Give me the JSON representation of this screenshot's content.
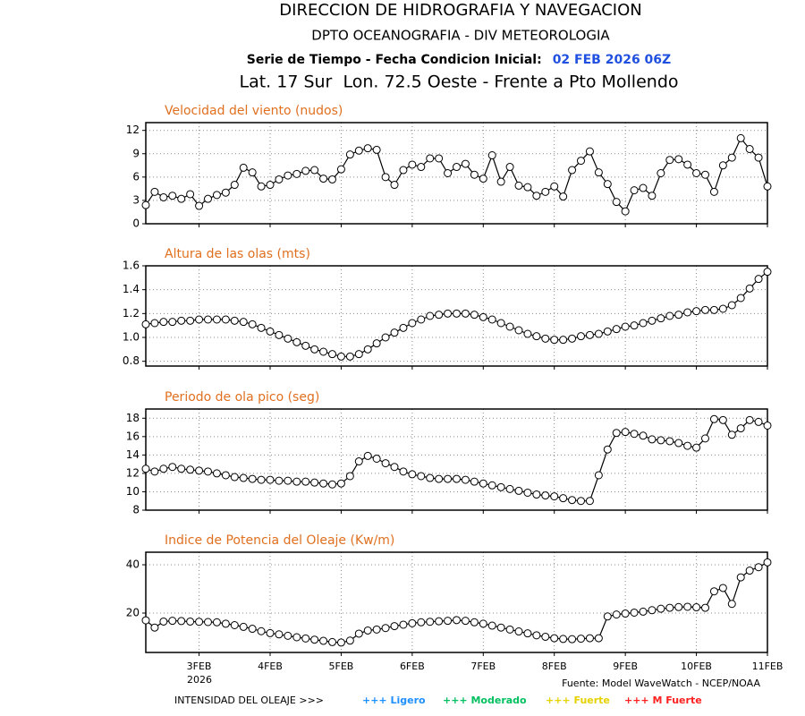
{
  "header": {
    "line1": "DIRECCION DE HIDROGRAFIA Y NAVEGACION",
    "line2": "DPTO OCEANOGRAFIA - DIV METEOROLOGIA",
    "line3": "Serie de Tiempo - Fecha Condicion Inicial:",
    "date": "02 FEB 2026 06Z",
    "location": "Lat. 17 Sur  Lon. 72.5 Oeste - Frente a Pto Mollendo"
  },
  "footer": {
    "year": "2026",
    "source": "Fuente: Model WaveWatch - NCEP/NOAA",
    "intensity_label": "INTENSIDAD DEL OLEAJE >>>",
    "intensity_items": [
      {
        "text": "+++ Ligero",
        "color": "#1e90ff"
      },
      {
        "text": "+++ Moderado",
        "color": "#00c060"
      },
      {
        "text": "+++ Fuerte",
        "color": "#e6d200"
      },
      {
        "text": "+++ M Fuerte",
        "color": "#ff2020"
      }
    ]
  },
  "chart_data": [
    {
      "type": "line",
      "title": "Velocidad del viento (nudos)",
      "color": "#000000",
      "grid": true,
      "x": [
        2.25,
        2.375,
        2.5,
        2.625,
        2.75,
        2.875,
        3,
        3.125,
        3.25,
        3.375,
        3.5,
        3.625,
        3.75,
        3.875,
        4,
        4.125,
        4.25,
        4.375,
        4.5,
        4.625,
        4.75,
        4.875,
        5,
        5.125,
        5.25,
        5.375,
        5.5,
        5.625,
        5.75,
        5.875,
        6,
        6.125,
        6.25,
        6.375,
        6.5,
        6.625,
        6.75,
        6.875,
        7,
        7.125,
        7.25,
        7.375,
        7.5,
        7.625,
        7.75,
        7.875,
        8,
        8.125,
        8.25,
        8.375,
        8.5,
        8.625,
        8.75,
        8.875,
        9,
        9.125,
        9.25,
        9.375,
        9.5,
        9.625,
        9.75,
        9.875,
        10,
        10.125,
        10.25,
        10.375,
        10.5,
        10.625,
        10.75,
        10.875,
        11
      ],
      "values": [
        2.4,
        4.1,
        3.4,
        3.6,
        3.2,
        3.8,
        2.3,
        3.2,
        3.7,
        4.0,
        5.0,
        7.2,
        6.6,
        4.8,
        5.0,
        5.7,
        6.2,
        6.4,
        6.8,
        6.9,
        5.8,
        5.7,
        7.0,
        8.9,
        9.4,
        9.7,
        9.5,
        6.0,
        5.0,
        6.9,
        7.6,
        7.3,
        8.4,
        8.4,
        6.5,
        7.3,
        7.7,
        6.3,
        5.8,
        8.8,
        5.4,
        7.3,
        4.9,
        4.7,
        3.6,
        4.1,
        4.8,
        3.5,
        6.9,
        8.1,
        9.3,
        6.6,
        5.1,
        2.8,
        1.6,
        4.3,
        4.6,
        3.6,
        6.5,
        8.2,
        8.3,
        7.6,
        6.5,
        6.3,
        4.1,
        7.5,
        8.5,
        11.0,
        9.6,
        8.5,
        4.8
      ],
      "xlim": [
        2.25,
        11
      ],
      "xticks": [
        3,
        4,
        5,
        6,
        7,
        8,
        9,
        10,
        11
      ],
      "ylim": [
        0,
        13
      ],
      "yticks": [
        0,
        3,
        6,
        9,
        12
      ]
    },
    {
      "type": "line",
      "title": "Altura de las olas (mts)",
      "color": "#000000",
      "grid": true,
      "x": [
        2.25,
        2.375,
        2.5,
        2.625,
        2.75,
        2.875,
        3,
        3.125,
        3.25,
        3.375,
        3.5,
        3.625,
        3.75,
        3.875,
        4,
        4.125,
        4.25,
        4.375,
        4.5,
        4.625,
        4.75,
        4.875,
        5,
        5.125,
        5.25,
        5.375,
        5.5,
        5.625,
        5.75,
        5.875,
        6,
        6.125,
        6.25,
        6.375,
        6.5,
        6.625,
        6.75,
        6.875,
        7,
        7.125,
        7.25,
        7.375,
        7.5,
        7.625,
        7.75,
        7.875,
        8,
        8.125,
        8.25,
        8.375,
        8.5,
        8.625,
        8.75,
        8.875,
        9,
        9.125,
        9.25,
        9.375,
        9.5,
        9.625,
        9.75,
        9.875,
        10,
        10.125,
        10.25,
        10.375,
        10.5,
        10.625,
        10.75,
        10.875,
        11
      ],
      "values": [
        1.11,
        1.12,
        1.13,
        1.13,
        1.14,
        1.14,
        1.15,
        1.15,
        1.15,
        1.15,
        1.14,
        1.13,
        1.11,
        1.08,
        1.05,
        1.02,
        0.99,
        0.96,
        0.93,
        0.9,
        0.88,
        0.86,
        0.84,
        0.84,
        0.86,
        0.9,
        0.95,
        1.0,
        1.04,
        1.08,
        1.12,
        1.15,
        1.18,
        1.19,
        1.2,
        1.2,
        1.2,
        1.19,
        1.17,
        1.15,
        1.12,
        1.09,
        1.06,
        1.03,
        1.01,
        0.99,
        0.98,
        0.98,
        0.99,
        1.01,
        1.02,
        1.03,
        1.05,
        1.07,
        1.09,
        1.1,
        1.12,
        1.14,
        1.16,
        1.18,
        1.19,
        1.21,
        1.22,
        1.23,
        1.23,
        1.24,
        1.27,
        1.33,
        1.41,
        1.49,
        1.55
      ],
      "xlim": [
        2.25,
        11
      ],
      "xticks": [
        3,
        4,
        5,
        6,
        7,
        8,
        9,
        10,
        11
      ],
      "ylim": [
        0.76,
        1.6
      ],
      "yticks": [
        0.8,
        {
          "value": 1,
          "label": "1.0"
        },
        1.2,
        1.4,
        1.6
      ]
    },
    {
      "type": "line",
      "title": "Periodo de ola pico (seg)",
      "color": "#000000",
      "grid": true,
      "x": [
        2.25,
        2.375,
        2.5,
        2.625,
        2.75,
        2.875,
        3,
        3.125,
        3.25,
        3.375,
        3.5,
        3.625,
        3.75,
        3.875,
        4,
        4.125,
        4.25,
        4.375,
        4.5,
        4.625,
        4.75,
        4.875,
        5,
        5.125,
        5.25,
        5.375,
        5.5,
        5.625,
        5.75,
        5.875,
        6,
        6.125,
        6.25,
        6.375,
        6.5,
        6.625,
        6.75,
        6.875,
        7,
        7.125,
        7.25,
        7.375,
        7.5,
        7.625,
        7.75,
        7.875,
        8,
        8.125,
        8.25,
        8.375,
        8.5,
        8.625,
        8.75,
        8.875,
        9,
        9.125,
        9.25,
        9.375,
        9.5,
        9.625,
        9.75,
        9.875,
        10,
        10.125,
        10.25,
        10.375,
        10.5,
        10.625,
        10.75,
        10.875,
        11
      ],
      "values": [
        12.5,
        12.2,
        12.5,
        12.7,
        12.5,
        12.4,
        12.3,
        12.2,
        12.0,
        11.8,
        11.6,
        11.5,
        11.4,
        11.3,
        11.3,
        11.2,
        11.2,
        11.1,
        11.1,
        11.0,
        10.9,
        10.8,
        10.9,
        11.7,
        13.3,
        13.9,
        13.6,
        13.1,
        12.7,
        12.2,
        11.9,
        11.7,
        11.5,
        11.4,
        11.4,
        11.4,
        11.3,
        11.1,
        10.9,
        10.7,
        10.5,
        10.3,
        10.1,
        9.9,
        9.7,
        9.6,
        9.5,
        9.3,
        9.1,
        9.0,
        9.0,
        11.8,
        14.6,
        16.4,
        16.5,
        16.3,
        16.1,
        15.7,
        15.6,
        15.5,
        15.3,
        15.0,
        14.8,
        15.8,
        17.9,
        17.8,
        16.2,
        16.9,
        17.8,
        17.6,
        17.2
      ],
      "xlim": [
        2.25,
        11
      ],
      "xticks": [
        3,
        4,
        5,
        6,
        7,
        8,
        9,
        10,
        11
      ],
      "ylim": [
        8,
        19
      ],
      "yticks": [
        8,
        10,
        12,
        14,
        16,
        18
      ]
    },
    {
      "type": "line",
      "title": "Indice de Potencia del Oleaje (Kw/m)",
      "color": "#000000",
      "grid": true,
      "x": [
        2.25,
        2.375,
        2.5,
        2.625,
        2.75,
        2.875,
        3,
        3.125,
        3.25,
        3.375,
        3.5,
        3.625,
        3.75,
        3.875,
        4,
        4.125,
        4.25,
        4.375,
        4.5,
        4.625,
        4.75,
        4.875,
        5,
        5.125,
        5.25,
        5.375,
        5.5,
        5.625,
        5.75,
        5.875,
        6,
        6.125,
        6.25,
        6.375,
        6.5,
        6.625,
        6.75,
        6.875,
        7,
        7.125,
        7.25,
        7.375,
        7.5,
        7.625,
        7.75,
        7.875,
        8,
        8.125,
        8.25,
        8.375,
        8.5,
        8.625,
        8.75,
        8.875,
        9,
        9.125,
        9.25,
        9.375,
        9.5,
        9.625,
        9.75,
        9.875,
        10,
        10.125,
        10.25,
        10.375,
        10.5,
        10.625,
        10.75,
        10.875,
        11
      ],
      "values": [
        17,
        14,
        16.5,
        16.8,
        16.7,
        16.5,
        16.4,
        16.3,
        16.2,
        15.6,
        15,
        14.3,
        13.5,
        12.5,
        11.7,
        11.2,
        10.6,
        10,
        9.5,
        9,
        8.5,
        8,
        7.8,
        8.6,
        11.5,
        12.8,
        13.2,
        13.8,
        14.6,
        15.2,
        15.8,
        16.2,
        16.4,
        16.6,
        16.8,
        17.1,
        16.8,
        16.2,
        15.6,
        14.8,
        14,
        13.2,
        12.4,
        11.6,
        10.8,
        10.2,
        9.6,
        9.3,
        9.2,
        9.4,
        9.6,
        9.6,
        18.6,
        19.4,
        19.8,
        20.2,
        20.6,
        21.2,
        21.8,
        22.2,
        22.5,
        22.6,
        22.4,
        22.2,
        29,
        30.4,
        23.8,
        34.8,
        37.6,
        39,
        41
      ],
      "xlim": [
        2.25,
        11
      ],
      "xticks": [
        {
          "value": 3,
          "label": "3FEB"
        },
        {
          "value": 4,
          "label": "4FEB"
        },
        {
          "value": 5,
          "label": "5FEB"
        },
        {
          "value": 6,
          "label": "6FEB"
        },
        {
          "value": 7,
          "label": "7FEB"
        },
        {
          "value": 8,
          "label": "8FEB"
        },
        {
          "value": 9,
          "label": "9FEB"
        },
        {
          "value": 10,
          "label": "10FEB"
        },
        {
          "value": 11,
          "label": "11FEB"
        }
      ],
      "ylim": [
        3.7,
        45.2
      ],
      "yticks": [
        20,
        40
      ]
    }
  ]
}
